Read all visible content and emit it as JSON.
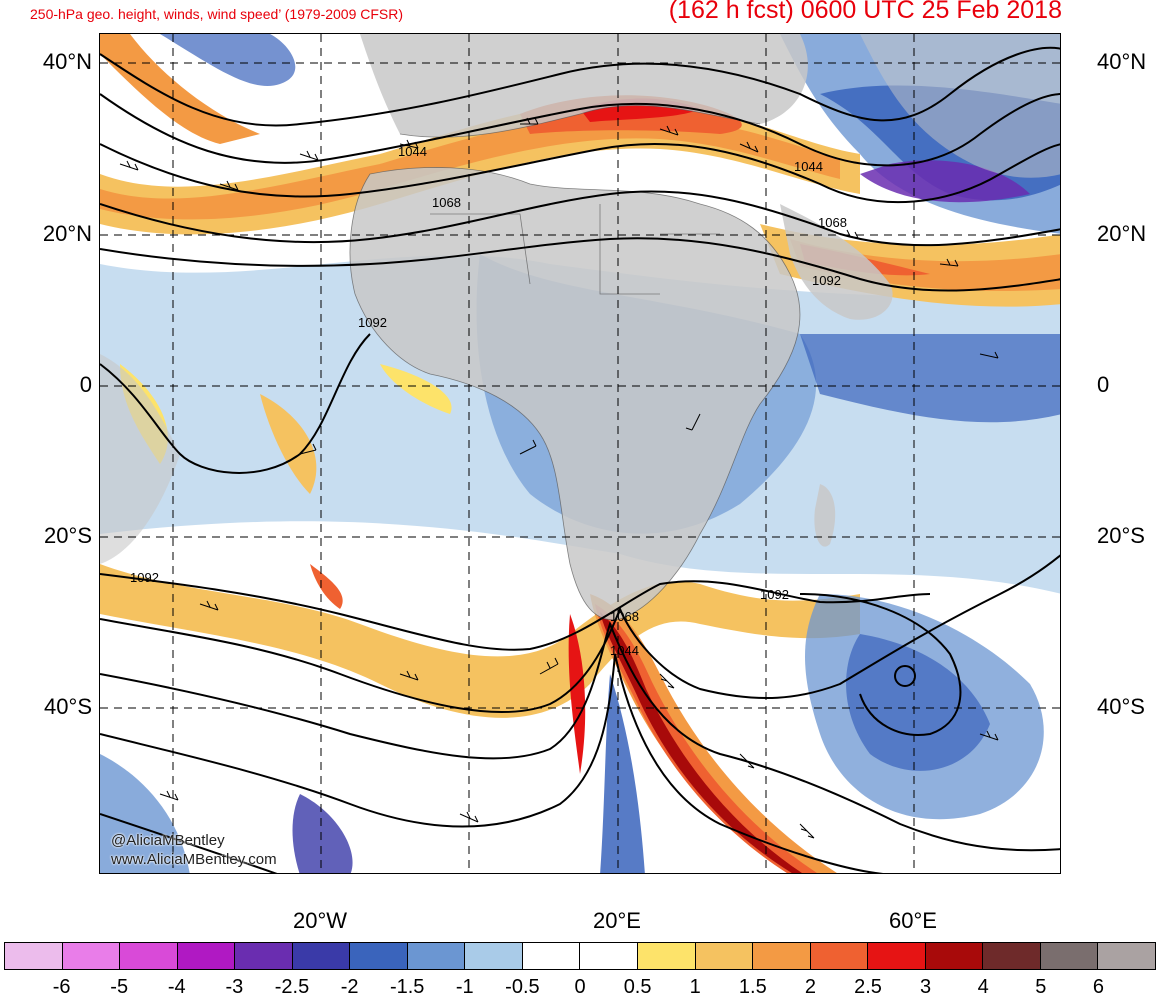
{
  "header": {
    "subtitle": "250-hPa geo. height, winds, wind speed’ (1979-2009 CFSR)",
    "valid_time": "(162 h fcst) 0600 UTC 25 Feb 2018"
  },
  "map": {
    "lat_labels": [
      "40°N",
      "20°N",
      "0",
      "20°S",
      "40°S"
    ],
    "lon_labels": [
      "20°W",
      "20°E",
      "60°E"
    ],
    "contour_labels": [
      "1044",
      "1068",
      "1092",
      "1092",
      "1092",
      "1068",
      "1044",
      "1044",
      "1068",
      "1092"
    ],
    "credit": [
      "@AliciaMBentley",
      "www.AliciaMBentley.com"
    ],
    "colors": {
      "land": "#c8c8c8",
      "contour": "#000000",
      "grid": "#000000"
    }
  },
  "colorbar": {
    "labels": [
      "-6",
      "-5",
      "-4",
      "-3",
      "-2.5",
      "-2",
      "-1.5",
      "-1",
      "-0.5",
      "0",
      "0.5",
      "1",
      "1.5",
      "2",
      "2.5",
      "3",
      "4",
      "5",
      "6"
    ],
    "colors": [
      "#ecbcec",
      "#e97de9",
      "#d94ad8",
      "#b019c3",
      "#6a2db0",
      "#3a3aa8",
      "#3a64bc",
      "#6b96d2",
      "#a9cbe8",
      "#ffffff",
      "#ffffff",
      "#fde36a",
      "#f5c260",
      "#f39a44",
      "#ef6131",
      "#e61414",
      "#a80a0a",
      "#6e2a2a",
      "#7a6e6e",
      "#aaa2a2"
    ]
  }
}
